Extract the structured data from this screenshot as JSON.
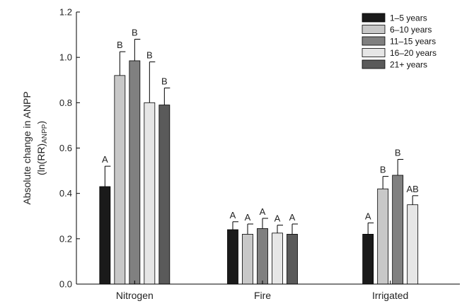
{
  "chart_data": {
    "type": "bar",
    "ylabel_line1": "Absolute change in ANPP",
    "ylabel_line2_main": "(ln(RR)",
    "ylabel_line2_sub": "ANPP",
    "ylabel_line2_end": ")",
    "ylim": [
      0,
      1.2
    ],
    "yticks": [
      "0.0",
      "0.2",
      "0.4",
      "0.6",
      "0.8",
      "1.0",
      "1.2"
    ],
    "categories": [
      "Nitrogen",
      "Fire",
      "Irrigated"
    ],
    "legend_position": "top-right",
    "series": [
      {
        "name": "1–5 years",
        "color": "#1a1a1a",
        "values": [
          0.43,
          0.24,
          0.22
        ],
        "errors": [
          0.09,
          0.035,
          0.05
        ],
        "labels": [
          "A",
          "A",
          "A"
        ]
      },
      {
        "name": "6–10 years",
        "color": "#c8c8c8",
        "values": [
          0.92,
          0.22,
          0.42
        ],
        "errors": [
          0.105,
          0.045,
          0.055
        ],
        "labels": [
          "B",
          "A",
          "B"
        ]
      },
      {
        "name": "11–15 years",
        "color": "#808080",
        "values": [
          0.985,
          0.245,
          0.48
        ],
        "errors": [
          0.095,
          0.045,
          0.07
        ],
        "labels": [
          "B",
          "A",
          "B"
        ]
      },
      {
        "name": "16–20 years",
        "color": "#e6e6e6",
        "values": [
          0.8,
          0.225,
          0.35
        ],
        "errors": [
          0.18,
          0.035,
          0.04
        ],
        "labels": [
          "B",
          "A",
          "AB"
        ]
      },
      {
        "name": "21+ years",
        "color": "#5a5a5a",
        "values": [
          0.79,
          0.22,
          null
        ],
        "errors": [
          0.075,
          0.045,
          null
        ],
        "labels": [
          "B",
          "A",
          null
        ]
      }
    ]
  }
}
